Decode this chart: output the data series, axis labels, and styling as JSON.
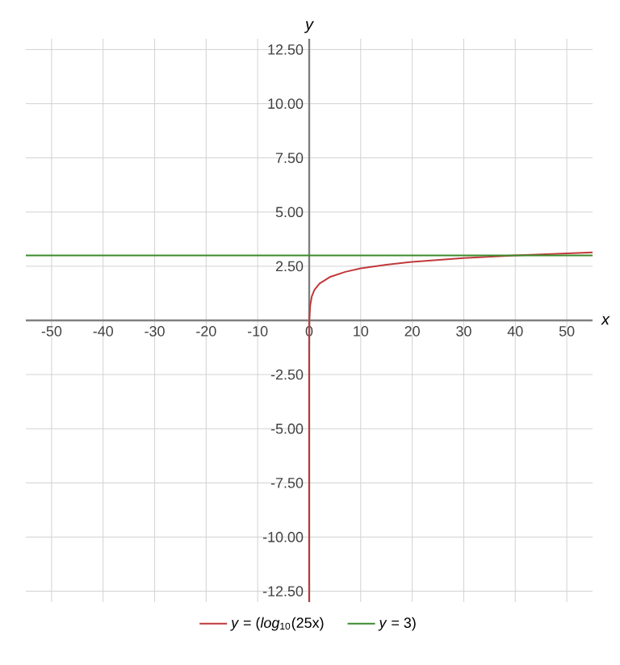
{
  "chart_data": {
    "type": "line",
    "xlabel": "x",
    "ylabel": "y",
    "xlim": [
      -55,
      55
    ],
    "ylim": [
      -13,
      13
    ],
    "xticks": [
      -50,
      -40,
      -30,
      -20,
      -10,
      0,
      10,
      20,
      30,
      40,
      50
    ],
    "yticks": [
      {
        "value": -12.5,
        "label": "-12.50"
      },
      {
        "value": -10,
        "label": "-10.00"
      },
      {
        "value": -7.5,
        "label": "-7.50"
      },
      {
        "value": -5,
        "label": "-5.00"
      },
      {
        "value": -2.5,
        "label": "-2.50"
      },
      {
        "value": 2.5,
        "label": "2.50"
      },
      {
        "value": 5,
        "label": "5.00"
      },
      {
        "value": 7.5,
        "label": "7.50"
      },
      {
        "value": 10,
        "label": "10.00"
      },
      {
        "value": 12.5,
        "label": "12.50"
      }
    ],
    "grid": true,
    "legend": "bottom",
    "marker": "none",
    "line_style": "solid",
    "series": [
      {
        "name": "*y* = (*log*$_{10}$(25x)",
        "color": "#c0393b",
        "x": [
          0,
          1e-05,
          0.001,
          0.01,
          0.05,
          0.2,
          0.5,
          1,
          2,
          4,
          7,
          10,
          15,
          20,
          30,
          40,
          55
        ],
        "values": [
          -13,
          -3.6,
          -1.6,
          -0.6,
          0.1,
          0.7,
          1.1,
          1.4,
          1.7,
          2.0,
          2.24,
          2.4,
          2.57,
          2.7,
          2.88,
          3.0,
          3.14
        ]
      },
      {
        "name": "*y* = 3)",
        "color": "#3a8a2a",
        "x": [
          -55,
          55
        ],
        "values": [
          3,
          3
        ]
      }
    ]
  }
}
